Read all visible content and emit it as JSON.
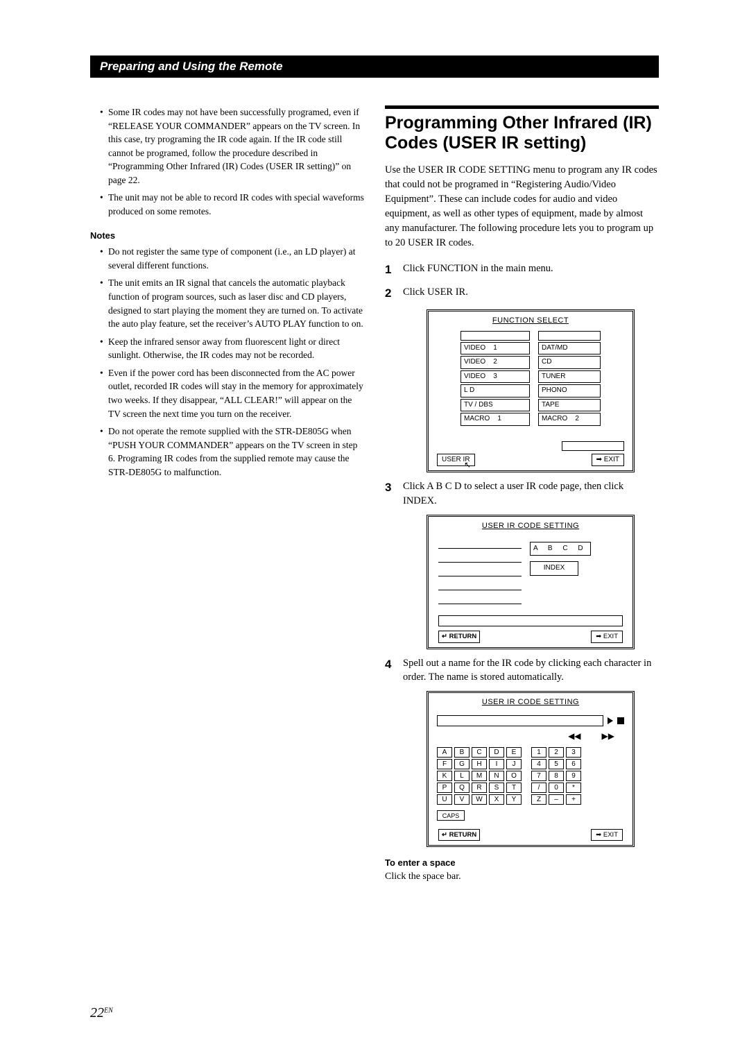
{
  "header": {
    "title": "Preparing and Using the Remote"
  },
  "left": {
    "bullets1": [
      "Some IR codes may not have been successfully programed, even if “RELEASE YOUR COMMANDER” appears on the TV screen. In this case, try programing the IR code again. If the IR code still cannot be programed, follow the procedure described in “Programming Other Infrared (IR) Codes (USER IR setting)” on page 22.",
      "The unit may not be able to record IR codes with special waveforms produced on some remotes."
    ],
    "notes_label": "Notes",
    "notes": [
      "Do not register the same type of component (i.e., an LD player) at several different functions.",
      "The unit emits an IR signal that cancels the automatic playback function of program sources, such as laser disc and CD players, designed to start playing the moment they are turned on. To activate the auto play feature, set the receiver’s AUTO PLAY function to on.",
      "Keep the infrared sensor away from fluorescent light or direct sunlight.  Otherwise, the IR codes may not be recorded.",
      "Even if the power cord has been disconnected from the AC power outlet, recorded IR codes will stay in the memory for approximately two weeks.  If they disappear, “ALL CLEAR!” will appear on the TV screen the next time you turn on the receiver.",
      "Do not operate the remote supplied with the STR-DE805G when “PUSH YOUR COMMANDER” appears on the TV screen in step 6. Programing IR codes from the supplied remote may cause the STR-DE805G to malfunction."
    ]
  },
  "right": {
    "title": "Programming Other Infrared (IR) Codes (USER IR setting)",
    "intro": "Use the USER IR CODE SETTING menu to program any IR codes that could not be programed in “Registering Audio/Video Equipment”.  These can include codes for audio and video equipment, as well as other types of equipment, made by almost any manufacturer.  The following procedure lets you to program up to 20 USER IR codes.",
    "steps": {
      "s1": "Click FUNCTION in the main menu.",
      "s2": "Click USER IR.",
      "s3": "Click A B C D to select a user IR code page, then click INDEX.",
      "s4": "Spell out a name for the IR code by clicking each character in order. The name is stored automatically."
    },
    "screen1": {
      "title": "FUNCTION SELECT",
      "left_items": [
        "VIDEO    1",
        "VIDEO    2",
        "VIDEO    3",
        "L D",
        "TV / DBS",
        "MACRO    1"
      ],
      "right_items": [
        "DAT/MD",
        "CD",
        "TUNER",
        "PHONO",
        "TAPE",
        "MACRO    2"
      ],
      "user_ir": "USER  IR",
      "exit": "➡ EXIT"
    },
    "screen2": {
      "title": "USER IR CODE SETTING",
      "abcd": "A B C D",
      "index": "INDEX",
      "return": "↵ RETURN",
      "exit": "➡ EXIT"
    },
    "screen3": {
      "title": "USER IR CODE SETTING",
      "keys_rows": [
        [
          "A",
          "B",
          "C",
          "D",
          "E",
          "1",
          "2",
          "3"
        ],
        [
          "F",
          "G",
          "H",
          "I",
          "J",
          "4",
          "5",
          "6"
        ],
        [
          "K",
          "L",
          "M",
          "N",
          "O",
          "7",
          "8",
          "9"
        ],
        [
          "P",
          "Q",
          "R",
          "S",
          "T",
          "/",
          "0",
          "*"
        ],
        [
          "U",
          "V",
          "W",
          "X",
          "Y",
          "Z",
          "–",
          "+"
        ]
      ],
      "caps": "CAPS",
      "return": "↵ RETURN",
      "exit": "➡ EXIT"
    },
    "space_head": "To enter a space",
    "space_txt": "Click the space bar."
  },
  "page_number": {
    "num": "22",
    "suffix": "EN"
  }
}
